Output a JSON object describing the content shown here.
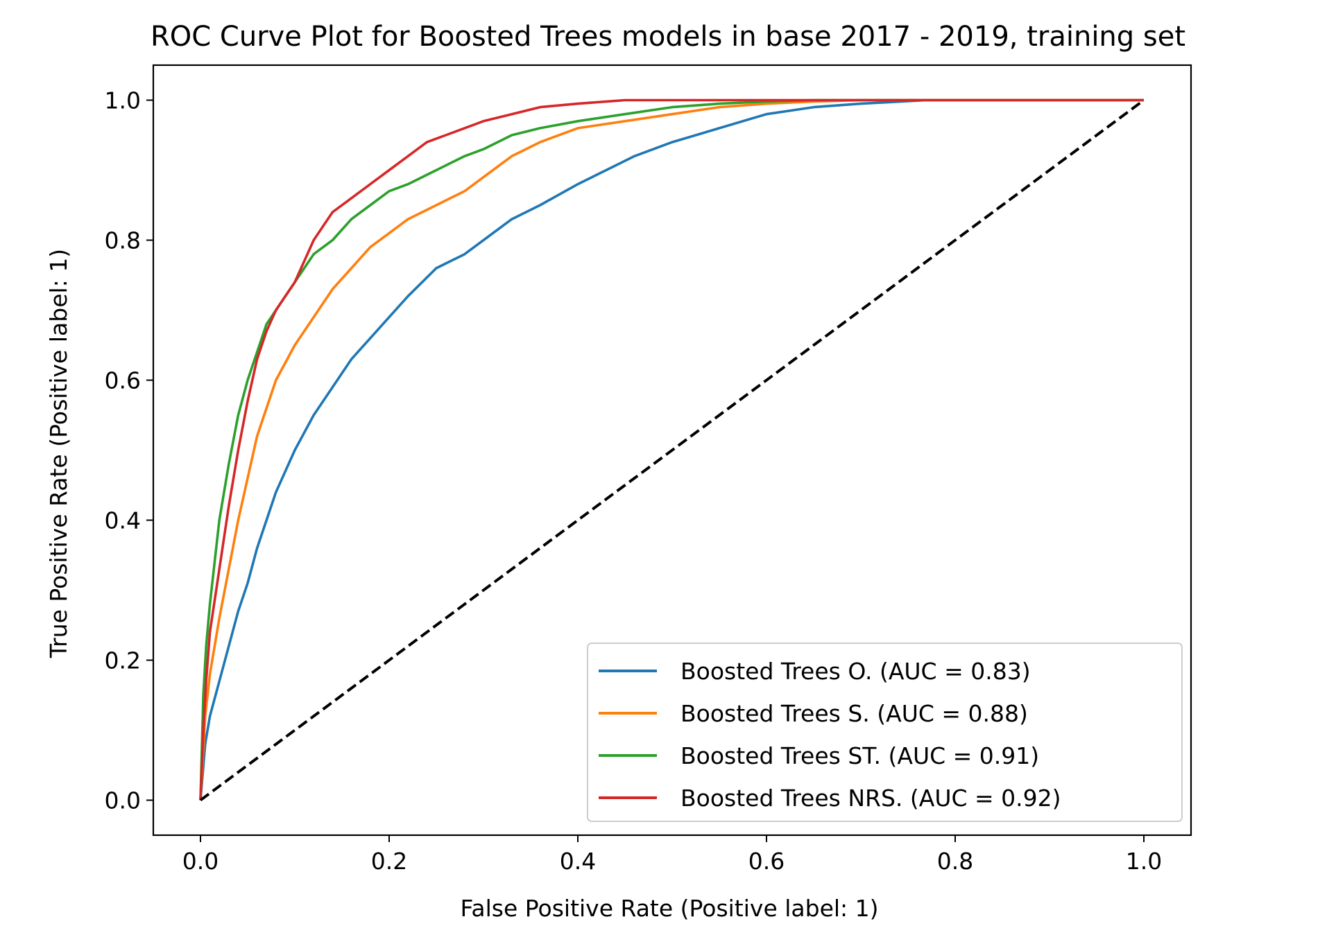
{
  "chart_data": {
    "type": "line",
    "title": "ROC Curve Plot for Boosted Trees models in base 2017 - 2019, training set",
    "xlabel": "False Positive Rate (Positive label: 1)",
    "ylabel": "True Positive Rate (Positive label: 1)",
    "xlim": [
      -0.05,
      1.05
    ],
    "ylim": [
      -0.05,
      1.05
    ],
    "xticks": [
      0.0,
      0.2,
      0.4,
      0.6,
      0.8,
      1.0
    ],
    "xtick_labels": [
      "0.0",
      "0.2",
      "0.4",
      "0.6",
      "0.8",
      "1.0"
    ],
    "yticks": [
      0.0,
      0.2,
      0.4,
      0.6,
      0.8,
      1.0
    ],
    "ytick_labels": [
      "0.0",
      "0.2",
      "0.4",
      "0.6",
      "0.8",
      "1.0"
    ],
    "grid": false,
    "legend_position": "lower-right",
    "series": [
      {
        "name": "Boosted Trees O. (AUC = 0.83)",
        "color": "#1f77b4",
        "x": [
          0.0,
          0.005,
          0.01,
          0.02,
          0.03,
          0.04,
          0.05,
          0.06,
          0.07,
          0.08,
          0.09,
          0.1,
          0.12,
          0.14,
          0.16,
          0.18,
          0.2,
          0.22,
          0.25,
          0.28,
          0.3,
          0.33,
          0.36,
          0.4,
          0.43,
          0.46,
          0.5,
          0.55,
          0.6,
          0.65,
          0.7,
          0.77,
          0.8,
          0.9,
          1.0
        ],
        "y": [
          0.0,
          0.08,
          0.12,
          0.17,
          0.22,
          0.27,
          0.31,
          0.36,
          0.4,
          0.44,
          0.47,
          0.5,
          0.55,
          0.59,
          0.63,
          0.66,
          0.69,
          0.72,
          0.76,
          0.78,
          0.8,
          0.83,
          0.85,
          0.88,
          0.9,
          0.92,
          0.94,
          0.96,
          0.98,
          0.99,
          0.995,
          1.0,
          1.0,
          1.0,
          1.0
        ]
      },
      {
        "name": "Boosted Trees S. (AUC = 0.88)",
        "color": "#ff7f0e",
        "x": [
          0.0,
          0.005,
          0.01,
          0.02,
          0.03,
          0.04,
          0.05,
          0.06,
          0.07,
          0.08,
          0.1,
          0.12,
          0.14,
          0.16,
          0.18,
          0.2,
          0.22,
          0.25,
          0.28,
          0.3,
          0.33,
          0.36,
          0.4,
          0.45,
          0.5,
          0.55,
          0.6,
          0.65,
          0.7,
          0.8,
          1.0
        ],
        "y": [
          0.0,
          0.12,
          0.18,
          0.26,
          0.33,
          0.4,
          0.46,
          0.52,
          0.56,
          0.6,
          0.65,
          0.69,
          0.73,
          0.76,
          0.79,
          0.81,
          0.83,
          0.85,
          0.87,
          0.89,
          0.92,
          0.94,
          0.96,
          0.97,
          0.98,
          0.99,
          0.995,
          0.998,
          1.0,
          1.0,
          1.0
        ]
      },
      {
        "name": "Boosted Trees ST. (AUC = 0.91)",
        "color": "#2ca02c",
        "x": [
          0.0,
          0.003,
          0.006,
          0.01,
          0.015,
          0.02,
          0.03,
          0.04,
          0.05,
          0.06,
          0.07,
          0.08,
          0.1,
          0.12,
          0.14,
          0.16,
          0.18,
          0.2,
          0.22,
          0.25,
          0.28,
          0.3,
          0.33,
          0.36,
          0.4,
          0.45,
          0.5,
          0.55,
          0.6,
          0.65,
          0.7,
          0.8,
          1.0
        ],
        "y": [
          0.0,
          0.15,
          0.22,
          0.28,
          0.34,
          0.4,
          0.48,
          0.55,
          0.6,
          0.64,
          0.68,
          0.7,
          0.74,
          0.78,
          0.8,
          0.83,
          0.85,
          0.87,
          0.88,
          0.9,
          0.92,
          0.93,
          0.95,
          0.96,
          0.97,
          0.98,
          0.99,
          0.995,
          0.998,
          1.0,
          1.0,
          1.0,
          1.0
        ]
      },
      {
        "name": "Boosted Trees NRS. (AUC = 0.92)",
        "color": "#d62728",
        "x": [
          0.0,
          0.003,
          0.006,
          0.01,
          0.02,
          0.03,
          0.04,
          0.05,
          0.06,
          0.07,
          0.08,
          0.09,
          0.1,
          0.11,
          0.12,
          0.13,
          0.14,
          0.16,
          0.18,
          0.2,
          0.22,
          0.24,
          0.26,
          0.28,
          0.3,
          0.33,
          0.36,
          0.4,
          0.45,
          0.5,
          0.6,
          0.8,
          1.0
        ],
        "y": [
          0.0,
          0.1,
          0.17,
          0.24,
          0.33,
          0.42,
          0.5,
          0.57,
          0.63,
          0.67,
          0.7,
          0.72,
          0.74,
          0.77,
          0.8,
          0.82,
          0.84,
          0.86,
          0.88,
          0.9,
          0.92,
          0.94,
          0.95,
          0.96,
          0.97,
          0.98,
          0.99,
          0.995,
          1.0,
          1.0,
          1.0,
          1.0,
          1.0
        ]
      },
      {
        "name": "",
        "color": "#000000",
        "dashed": true,
        "x": [
          0.0,
          1.0
        ],
        "y": [
          0.0,
          1.0
        ]
      }
    ]
  }
}
